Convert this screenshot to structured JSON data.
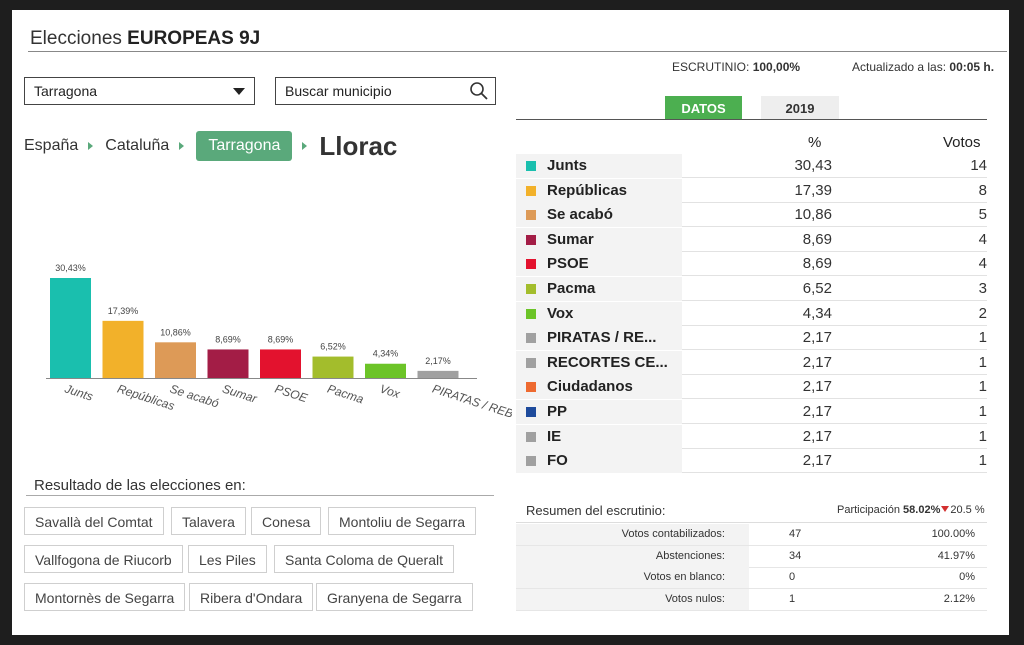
{
  "header": {
    "title_prefix": "Elecciones",
    "title_bold": "EUROPEAS 9J"
  },
  "province_select": {
    "value": "Tarragona"
  },
  "search": {
    "placeholder": "Buscar municipio"
  },
  "breadcrumb": {
    "items": [
      "España",
      "Cataluña"
    ],
    "current": "Tarragona",
    "town": "Llorac"
  },
  "status": {
    "escrutinio_label": "ESCRUTINIO:",
    "escrutinio_value": "100,00%",
    "updated_label": "Actualizado a las:",
    "updated_value": "00:05 h."
  },
  "tabs": {
    "datos": "DATOS",
    "year": "2019"
  },
  "table": {
    "header_pct": "%",
    "header_votes": "Votos",
    "rows": [
      {
        "name": "Junts",
        "pct": "30,43",
        "votes": "14",
        "color": "#1abfae"
      },
      {
        "name": "Repúblicas",
        "pct": "17,39",
        "votes": "8",
        "color": "#f2b12a"
      },
      {
        "name": "Se acabó",
        "pct": "10,86",
        "votes": "5",
        "color": "#dd9a57"
      },
      {
        "name": "Sumar",
        "pct": "8,69",
        "votes": "4",
        "color": "#a31d46"
      },
      {
        "name": "PSOE",
        "pct": "8,69",
        "votes": "4",
        "color": "#e3122e"
      },
      {
        "name": "Pacma",
        "pct": "6,52",
        "votes": "3",
        "color": "#a3bd2c"
      },
      {
        "name": "Vox",
        "pct": "4,34",
        "votes": "2",
        "color": "#6cc428"
      },
      {
        "name": "PIRATAS / RE...",
        "pct": "2,17",
        "votes": "1",
        "color": "#a0a0a0"
      },
      {
        "name": "RECORTES CE...",
        "pct": "2,17",
        "votes": "1",
        "color": "#a0a0a0"
      },
      {
        "name": "Ciudadanos",
        "pct": "2,17",
        "votes": "1",
        "color": "#ee6a30"
      },
      {
        "name": "PP",
        "pct": "2,17",
        "votes": "1",
        "color": "#1e4b9c"
      },
      {
        "name": "IE",
        "pct": "2,17",
        "votes": "1",
        "color": "#a0a0a0"
      },
      {
        "name": "FO",
        "pct": "2,17",
        "votes": "1",
        "color": "#a0a0a0"
      }
    ]
  },
  "chart_data": {
    "type": "bar",
    "categories": [
      "Junts",
      "Repúblicas",
      "Se acabó",
      "Sumar",
      "PSOE",
      "Pacma",
      "Vox",
      "PIRATAS / REB"
    ],
    "values": [
      30.43,
      17.39,
      10.86,
      8.69,
      8.69,
      6.52,
      4.34,
      2.17
    ],
    "labels": [
      "30,43%",
      "17,39%",
      "10,86%",
      "8,69%",
      "8,69%",
      "6,52%",
      "4,34%",
      "2,17%"
    ],
    "colors": [
      "#1abfae",
      "#f2b12a",
      "#dd9a57",
      "#a31d46",
      "#e3122e",
      "#a3bd2c",
      "#6cc428",
      "#a0a0a0"
    ],
    "ylim": [
      0,
      30.43
    ]
  },
  "results": {
    "title": "Resultado de las elecciones en:",
    "municipalities": [
      "Savallà del Comtat",
      "Talavera",
      "Conesa",
      "Montoliu de Segarra",
      "Vallfogona de Riucorb",
      "Les Piles",
      "Santa Coloma de Queralt",
      "Montornès de Segarra",
      "Ribera d'Ondara",
      "Granyena de Segarra"
    ]
  },
  "summary": {
    "title": "Resumen del escrutinio:",
    "participation_label": "Participación",
    "participation_value": "58.02%",
    "participation_delta": "20.5",
    "participation_delta_unit": "%",
    "rows": [
      {
        "label": "Votos contabilizados:",
        "v1": "47",
        "v2": "100.00%"
      },
      {
        "label": "Abstenciones:",
        "v1": "34",
        "v2": "41.97%"
      },
      {
        "label": "Votos en blanco:",
        "v1": "0",
        "v2": "0%"
      },
      {
        "label": "Votos nulos:",
        "v1": "1",
        "v2": "2.12%"
      }
    ]
  }
}
